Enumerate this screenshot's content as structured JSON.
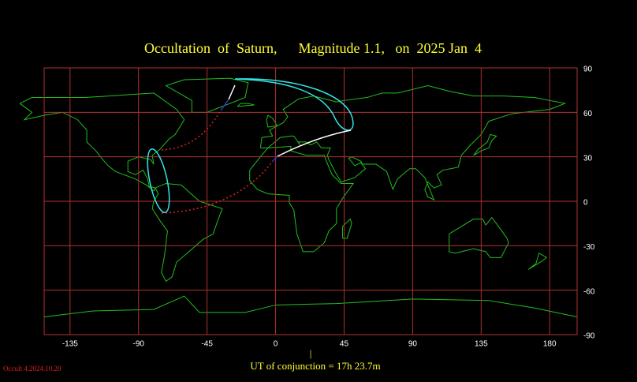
{
  "title": "Occultation  of  Saturn,      Magnitude 1.1,   on  2025 Jan  4",
  "map": {
    "xlim": [
      -152,
      198
    ],
    "ylim": [
      -90,
      90
    ],
    "xticks": [
      -135,
      -90,
      -45,
      0,
      45,
      90,
      135,
      180
    ],
    "yticks": [
      90,
      60,
      30,
      0,
      -30,
      -60,
      -90
    ]
  },
  "marker": "|",
  "conjunction": "UT of conjunction = 17h 23.7m",
  "version": "Occult 4.2024.10.20"
}
